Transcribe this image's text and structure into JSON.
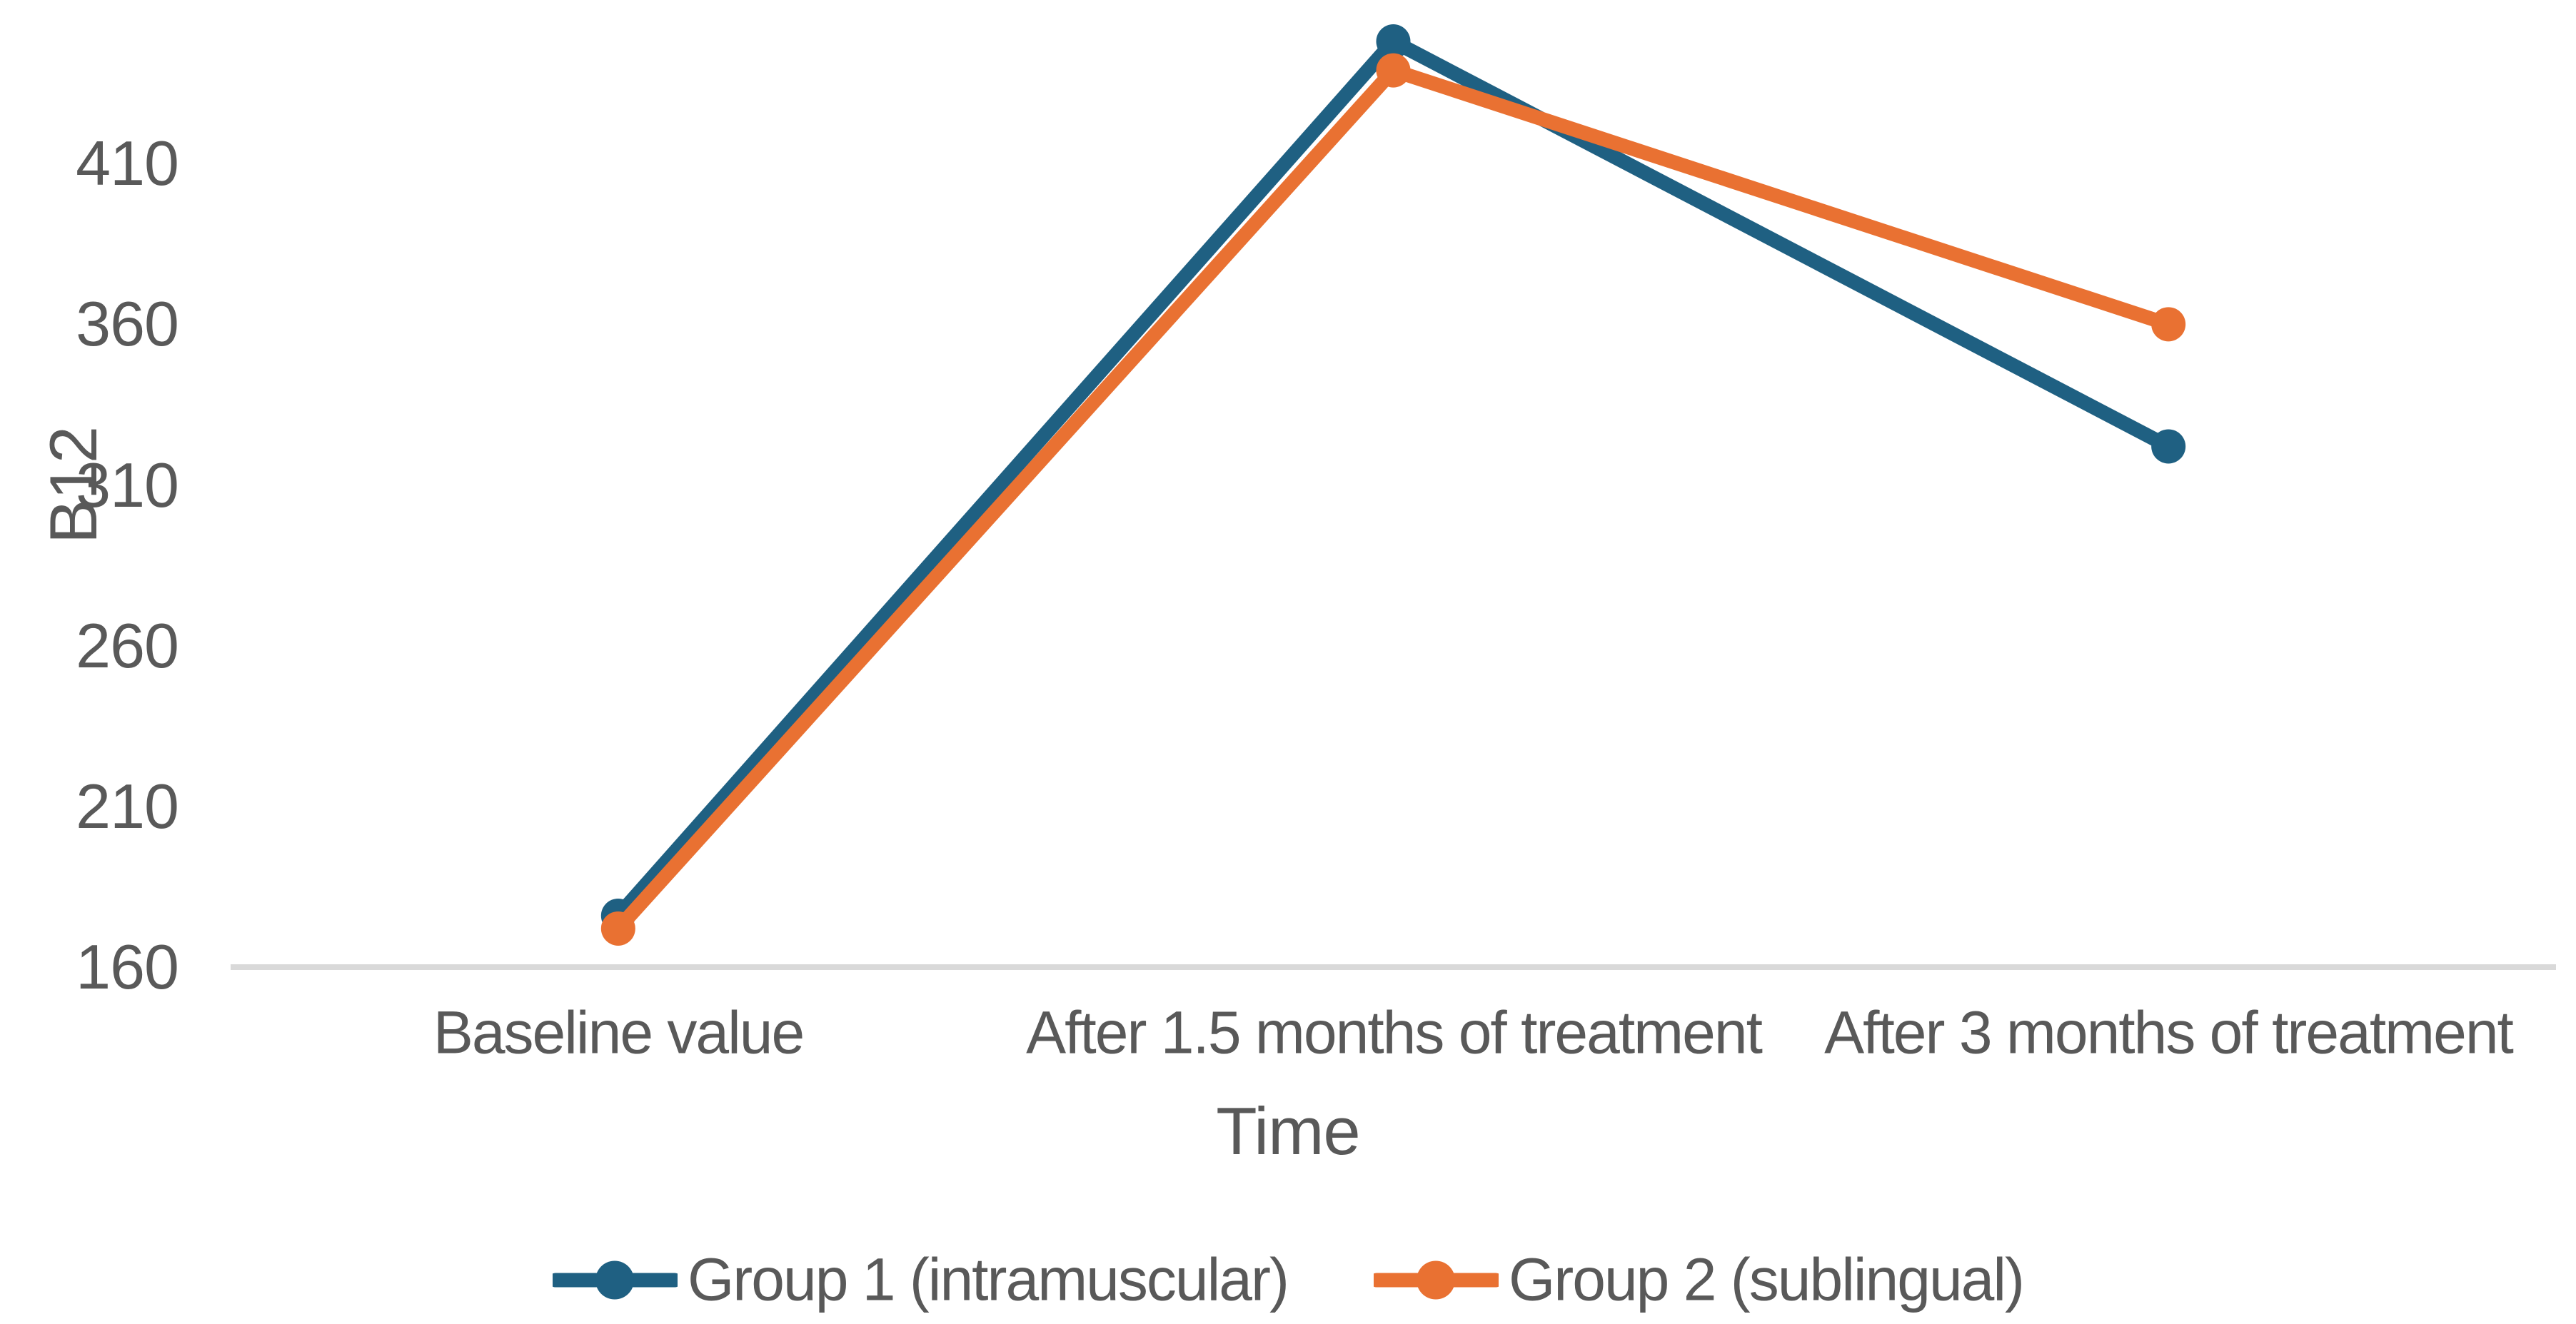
{
  "chart_data": {
    "type": "line",
    "title": "",
    "categories": [
      "Baseline value",
      "After 1.5 months of treatment",
      "After 3 months of treatment"
    ],
    "series": [
      {
        "name": "Group 1 (intramuscular)",
        "color": "#1F6082",
        "values": [
          176,
          448,
          322
        ]
      },
      {
        "name": "Group 2 (sublingual)",
        "color": "#E97132",
        "values": [
          172,
          439,
          360
        ]
      }
    ],
    "xlabel": "Time",
    "ylabel": "B12",
    "ylim": [
      160,
      460
    ],
    "ytick_step": 50,
    "yticks": [
      410,
      360,
      310,
      260,
      210,
      160
    ],
    "grid": false,
    "legend_position": "bottom",
    "marker": "circle",
    "axis_color": "#D9D9D9",
    "label_color": "#595959",
    "background_color": "#FFFFFF"
  }
}
